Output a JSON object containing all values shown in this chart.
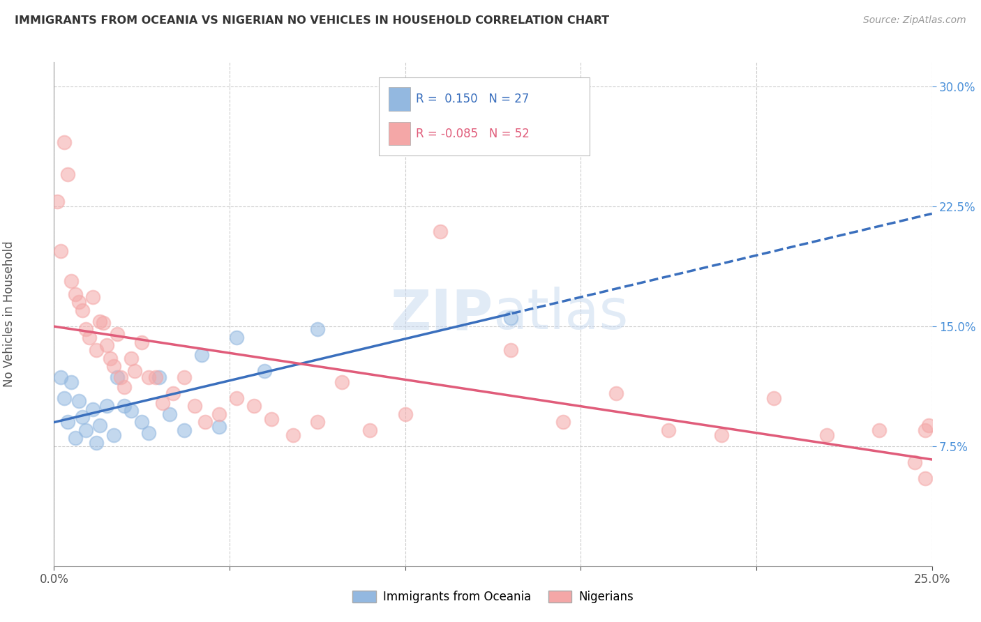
{
  "title": "IMMIGRANTS FROM OCEANIA VS NIGERIAN NO VEHICLES IN HOUSEHOLD CORRELATION CHART",
  "source": "Source: ZipAtlas.com",
  "ylabel": "No Vehicles in Household",
  "xlim": [
    0.0,
    0.25
  ],
  "ylim": [
    0.0,
    0.315
  ],
  "color_blue": "#93b8e0",
  "color_pink": "#f4a7a7",
  "color_blue_line": "#3a6fbd",
  "color_pink_line": "#e05c7a",
  "background_color": "#ffffff",
  "grid_color": "#c8c8c8",
  "watermark_color": "#c5d8ef",
  "watermark_text": "ZIPatlas",
  "oceania_x": [
    0.002,
    0.003,
    0.004,
    0.005,
    0.006,
    0.007,
    0.008,
    0.009,
    0.011,
    0.012,
    0.013,
    0.015,
    0.017,
    0.018,
    0.02,
    0.022,
    0.025,
    0.027,
    0.03,
    0.033,
    0.037,
    0.042,
    0.047,
    0.052,
    0.06,
    0.075,
    0.13
  ],
  "oceania_y": [
    0.118,
    0.105,
    0.09,
    0.115,
    0.08,
    0.103,
    0.093,
    0.085,
    0.098,
    0.077,
    0.088,
    0.1,
    0.082,
    0.118,
    0.1,
    0.097,
    0.09,
    0.083,
    0.118,
    0.095,
    0.085,
    0.132,
    0.087,
    0.143,
    0.122,
    0.148,
    0.155
  ],
  "nigerian_x": [
    0.001,
    0.002,
    0.003,
    0.004,
    0.005,
    0.006,
    0.007,
    0.008,
    0.009,
    0.01,
    0.011,
    0.012,
    0.013,
    0.014,
    0.015,
    0.016,
    0.017,
    0.018,
    0.019,
    0.02,
    0.022,
    0.023,
    0.025,
    0.027,
    0.029,
    0.031,
    0.034,
    0.037,
    0.04,
    0.043,
    0.047,
    0.052,
    0.057,
    0.062,
    0.068,
    0.075,
    0.082,
    0.09,
    0.1,
    0.11,
    0.13,
    0.145,
    0.16,
    0.175,
    0.19,
    0.205,
    0.22,
    0.235,
    0.245,
    0.248,
    0.248,
    0.249
  ],
  "nigerian_y": [
    0.228,
    0.197,
    0.265,
    0.245,
    0.178,
    0.17,
    0.165,
    0.16,
    0.148,
    0.143,
    0.168,
    0.135,
    0.153,
    0.152,
    0.138,
    0.13,
    0.125,
    0.145,
    0.118,
    0.112,
    0.13,
    0.122,
    0.14,
    0.118,
    0.118,
    0.102,
    0.108,
    0.118,
    0.1,
    0.09,
    0.095,
    0.105,
    0.1,
    0.092,
    0.082,
    0.09,
    0.115,
    0.085,
    0.095,
    0.209,
    0.135,
    0.09,
    0.108,
    0.085,
    0.082,
    0.105,
    0.082,
    0.085,
    0.065,
    0.085,
    0.055,
    0.088
  ]
}
